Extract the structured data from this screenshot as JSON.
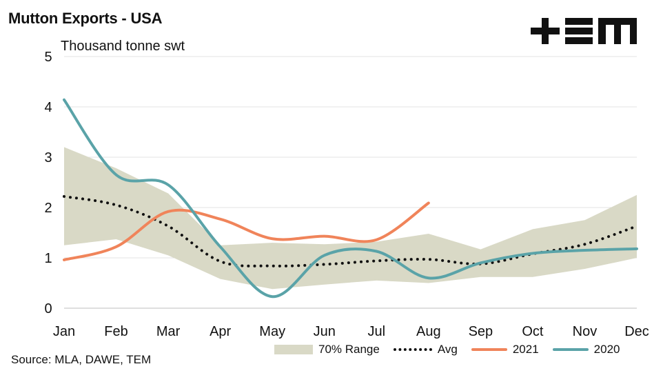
{
  "header": {
    "title": "Mutton Exports - USA",
    "unit_label": "Thousand tonne swt",
    "logo_text": "+EM"
  },
  "footer": {
    "source": "Source: MLA, DAWE, TEM"
  },
  "legend": {
    "range": "70% Range",
    "avg": "Avg",
    "s2021": "2021",
    "s2020": "2020"
  },
  "colors": {
    "range": "#d9d9c6",
    "avg": "#111111",
    "s2021": "#f0845a",
    "s2020": "#5aa3a8",
    "grid": "#e3e3e3"
  },
  "chart_data": {
    "type": "line",
    "title": "Mutton Exports - USA",
    "ylabel": "Thousand tonne swt",
    "ylim": [
      0,
      5
    ],
    "yticks": [
      0,
      1,
      2,
      3,
      4,
      5
    ],
    "grid": true,
    "legend_position": "bottom",
    "categories": [
      "Jan",
      "Feb",
      "Mar",
      "Apr",
      "May",
      "Jun",
      "Jul",
      "Aug",
      "Sep",
      "Oct",
      "Nov",
      "Dec"
    ],
    "range": {
      "name": "70% Range",
      "lower": [
        1.25,
        1.37,
        1.05,
        0.58,
        0.38,
        0.47,
        0.55,
        0.5,
        0.62,
        0.62,
        0.78,
        1.0
      ],
      "upper": [
        3.2,
        2.78,
        2.28,
        1.25,
        1.3,
        1.27,
        1.32,
        1.48,
        1.17,
        1.57,
        1.75,
        2.25
      ]
    },
    "series": [
      {
        "name": "Avg",
        "values": [
          2.22,
          2.05,
          1.63,
          0.93,
          0.84,
          0.87,
          0.94,
          0.97,
          0.88,
          1.08,
          1.27,
          1.63
        ]
      },
      {
        "name": "2021",
        "values": [
          0.96,
          1.22,
          1.92,
          1.77,
          1.38,
          1.43,
          1.36,
          2.09,
          null,
          null,
          null,
          null
        ]
      },
      {
        "name": "2020",
        "values": [
          4.14,
          2.65,
          2.45,
          1.22,
          0.23,
          1.05,
          1.13,
          0.6,
          0.9,
          1.09,
          1.15,
          1.18
        ]
      }
    ]
  }
}
